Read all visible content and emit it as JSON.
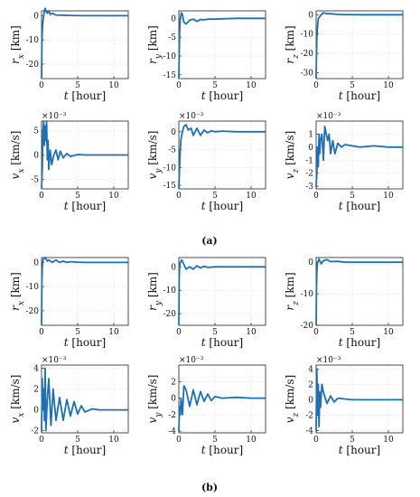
{
  "figure": {
    "caption_a": "(a)",
    "caption_b": "(b)"
  },
  "colors": {
    "line": "#1f6fb4",
    "grid": "#e3e3e3",
    "axis": "#222222"
  },
  "chart_data": [
    {
      "panel": "a-rx",
      "type": "line",
      "group": "a",
      "xlabel": "t [hour]",
      "ylabel": "r_x [km]",
      "xlim": [
        0,
        12
      ],
      "ylim": [
        -26,
        2
      ],
      "xticks": [
        0,
        5,
        10
      ],
      "yticks": [
        -20,
        -10,
        0
      ],
      "exponent": "",
      "x": [
        0,
        0.05,
        0.1,
        0.2,
        0.3,
        0.4,
        0.5,
        0.6,
        0.8,
        1,
        1.2,
        1.5,
        2,
        3,
        4,
        6,
        8,
        10,
        12
      ],
      "y": [
        -26,
        -12,
        -6,
        -2,
        0,
        2,
        3,
        2,
        1,
        2,
        0.5,
        1,
        0.3,
        0.2,
        0.1,
        0,
        0,
        0,
        0
      ]
    },
    {
      "panel": "a-ry",
      "type": "line",
      "group": "a",
      "xlabel": "t [hour]",
      "ylabel": "r_y [km]",
      "xlim": [
        0,
        12
      ],
      "ylim": [
        -16,
        2
      ],
      "xticks": [
        0,
        5,
        10
      ],
      "yticks": [
        -15,
        -10,
        -5,
        0
      ],
      "exponent": "",
      "x": [
        0,
        0.1,
        0.2,
        0.35,
        0.5,
        0.7,
        1,
        1.5,
        2,
        2.5,
        3,
        3.5,
        4,
        5,
        6,
        8,
        12
      ],
      "y": [
        -16,
        -4,
        0,
        1.5,
        1,
        -1,
        -1.5,
        -0.5,
        -0.2,
        -0.8,
        -0.3,
        -0.4,
        -0.2,
        -0.2,
        -0.1,
        0,
        0
      ]
    },
    {
      "panel": "a-rz",
      "type": "line",
      "group": "a",
      "xlabel": "t [hour]",
      "ylabel": "r_z [km]",
      "xlim": [
        0,
        12
      ],
      "ylim": [
        -33,
        2
      ],
      "xticks": [
        0,
        5,
        10
      ],
      "yticks": [
        -30,
        -20,
        -10,
        0
      ],
      "exponent": "",
      "x": [
        0,
        0.05,
        0.1,
        0.2,
        0.3,
        0.5,
        0.7,
        1,
        1.5,
        2,
        3,
        4,
        6,
        8,
        12
      ],
      "y": [
        -33,
        -20,
        -12,
        -6,
        -2,
        -1,
        0,
        1,
        0.5,
        0.5,
        0.2,
        0.1,
        0,
        0,
        0
      ]
    },
    {
      "panel": "a-vx",
      "type": "line",
      "group": "a",
      "xlabel": "t [hour]",
      "ylabel": "v_x [km/s]",
      "xlim": [
        0,
        12
      ],
      "ylim": [
        -7,
        7
      ],
      "xticks": [
        0,
        5,
        10
      ],
      "yticks": [
        -5,
        0,
        5
      ],
      "exponent": "×10⁻³",
      "x": [
        0,
        0.1,
        0.2,
        0.3,
        0.4,
        0.5,
        0.6,
        0.7,
        0.8,
        0.9,
        1.0,
        1.2,
        1.4,
        1.7,
        2,
        2.3,
        2.6,
        3,
        3.5,
        4,
        5,
        6,
        8,
        12
      ],
      "y": [
        -7,
        -3,
        5,
        7,
        2,
        6,
        3,
        7,
        -1,
        3,
        -3,
        1,
        -2,
        0,
        1,
        -1,
        0.8,
        -0.6,
        0.3,
        -0.3,
        0.1,
        0,
        0,
        0
      ]
    },
    {
      "panel": "a-vy",
      "type": "line",
      "group": "a",
      "xlabel": "t [hour]",
      "ylabel": "v_y [km/s]",
      "xlim": [
        0,
        12
      ],
      "ylim": [
        -16,
        3
      ],
      "xticks": [
        0,
        5,
        10
      ],
      "yticks": [
        -15,
        -10,
        -5,
        0
      ],
      "exponent": "×10⁻³",
      "x": [
        0,
        0.1,
        0.2,
        0.3,
        0.5,
        0.7,
        1,
        1.3,
        1.7,
        2,
        2.5,
        3,
        3.5,
        4,
        4.5,
        5,
        6,
        8,
        12
      ],
      "y": [
        -16,
        -10,
        -5,
        -2,
        0,
        1.5,
        2,
        0.5,
        1,
        -1,
        1,
        -1,
        0.5,
        -0.3,
        0.3,
        0,
        0.2,
        0,
        0
      ]
    },
    {
      "panel": "a-vz",
      "type": "line",
      "group": "a",
      "xlabel": "t [hour]",
      "ylabel": "v_z [km/s]",
      "xlim": [
        0,
        12
      ],
      "ylim": [
        -3.2,
        2
      ],
      "xticks": [
        0,
        5,
        10
      ],
      "yticks": [
        -3,
        -2,
        -1,
        0,
        1
      ],
      "exponent": "×10⁻³",
      "x": [
        0,
        0.1,
        0.2,
        0.3,
        0.4,
        0.5,
        0.6,
        0.8,
        1,
        1.2,
        1.4,
        1.6,
        1.8,
        2,
        2.3,
        2.6,
        3,
        3.5,
        4,
        5,
        6,
        8,
        10,
        12
      ],
      "y": [
        -3,
        -2,
        0,
        -1.5,
        1,
        -0.5,
        0.5,
        1,
        -1,
        1.6,
        1,
        0.5,
        1,
        -0.5,
        0.5,
        -0.5,
        0.3,
        0,
        0.2,
        0.1,
        0,
        0.1,
        0,
        0
      ]
    },
    {
      "panel": "b-rx",
      "type": "line",
      "group": "b",
      "xlabel": "t [hour]",
      "ylabel": "r_x [km]",
      "xlim": [
        0,
        12
      ],
      "ylim": [
        -26,
        2
      ],
      "xticks": [
        0,
        5,
        10
      ],
      "yticks": [
        -20,
        -10,
        0
      ],
      "exponent": "",
      "x": [
        0,
        0.05,
        0.1,
        0.2,
        0.3,
        0.5,
        0.8,
        1,
        1.5,
        2,
        2.5,
        3,
        3.5,
        4,
        5,
        6,
        8,
        12
      ],
      "y": [
        -26,
        -8,
        -2,
        1,
        1.5,
        2,
        0.5,
        1,
        0,
        1,
        0,
        0.5,
        0,
        0.3,
        0.1,
        0,
        0,
        0
      ]
    },
    {
      "panel": "b-ry",
      "type": "line",
      "group": "b",
      "xlabel": "t [hour]",
      "ylabel": "r_y [km]",
      "xlim": [
        0,
        12
      ],
      "ylim": [
        -25,
        4
      ],
      "xticks": [
        0,
        5,
        10
      ],
      "yticks": [
        -20,
        -10,
        0
      ],
      "exponent": "",
      "x": [
        0,
        0.05,
        0.1,
        0.2,
        0.4,
        0.7,
        1,
        1.5,
        2,
        2.5,
        3,
        3.5,
        4,
        5,
        6,
        8,
        12
      ],
      "y": [
        -25,
        -5,
        0,
        2,
        3,
        1,
        -1,
        0,
        -1,
        0.5,
        -0.5,
        0.3,
        -0.2,
        0,
        0,
        0,
        0
      ]
    },
    {
      "panel": "b-rz",
      "type": "line",
      "group": "b",
      "xlabel": "t [hour]",
      "ylabel": "r_z [km]",
      "xlim": [
        0,
        12
      ],
      "ylim": [
        -20,
        1.5
      ],
      "xticks": [
        0,
        5,
        10
      ],
      "yticks": [
        -20,
        -10,
        0
      ],
      "exponent": "",
      "x": [
        0,
        0.05,
        0.1,
        0.2,
        0.4,
        0.7,
        1,
        1.5,
        2,
        3,
        4,
        6,
        8,
        12
      ],
      "y": [
        -20,
        -8,
        -3,
        0,
        1,
        -0.5,
        0.5,
        0.8,
        0.2,
        0.3,
        0,
        0,
        0,
        0
      ]
    },
    {
      "panel": "b-vx",
      "type": "line",
      "group": "b",
      "xlabel": "t [hour]",
      "ylabel": "v_x [km/s]",
      "xlim": [
        0,
        12
      ],
      "ylim": [
        -2.2,
        4.3
      ],
      "xticks": [
        0,
        5,
        10
      ],
      "yticks": [
        -2,
        0,
        2,
        4
      ],
      "exponent": "×10⁻³",
      "x": [
        0,
        0.1,
        0.2,
        0.3,
        0.4,
        0.5,
        0.6,
        0.8,
        1,
        1.3,
        1.6,
        2,
        2.5,
        3,
        3.5,
        4,
        4.5,
        5,
        5.5,
        6,
        7,
        8,
        10,
        12
      ],
      "y": [
        -2,
        3,
        0,
        2,
        -1,
        4,
        -2,
        1,
        3,
        -1.5,
        2,
        -1,
        1.2,
        -1,
        1,
        -0.6,
        0.8,
        -0.4,
        0.4,
        -0.2,
        0.1,
        0,
        0,
        0
      ]
    },
    {
      "panel": "b-vy",
      "type": "line",
      "group": "b",
      "xlabel": "t [hour]",
      "ylabel": "v_y [km/s]",
      "xlim": [
        0,
        12
      ],
      "ylim": [
        -4.2,
        4
      ],
      "xticks": [
        0,
        5,
        10
      ],
      "yticks": [
        -4,
        -2,
        0,
        2
      ],
      "exponent": "×10⁻³",
      "x": [
        0,
        0.1,
        0.2,
        0.3,
        0.5,
        0.7,
        1,
        1.5,
        2,
        2.5,
        3,
        3.5,
        4,
        4.5,
        5,
        6,
        8,
        10,
        12
      ],
      "y": [
        -4,
        -1,
        -2,
        0,
        -2,
        1.5,
        1,
        -1,
        1,
        -0.8,
        0.8,
        -0.4,
        0.5,
        -0.3,
        0.2,
        0,
        0.1,
        0,
        0
      ]
    },
    {
      "panel": "b-vz",
      "type": "line",
      "group": "b",
      "xlabel": "t [hour]",
      "ylabel": "v_z [km/s]",
      "xlim": [
        0,
        12
      ],
      "ylim": [
        -4.3,
        4.5
      ],
      "xticks": [
        0,
        5,
        10
      ],
      "yticks": [
        -4,
        -2,
        0,
        2,
        4
      ],
      "exponent": "×10⁻³",
      "x": [
        0,
        0.1,
        0.2,
        0.3,
        0.4,
        0.5,
        0.6,
        0.8,
        1,
        1.5,
        2,
        2.5,
        3,
        4,
        5,
        6,
        8,
        12
      ],
      "y": [
        -4,
        4,
        -2,
        2,
        -3.5,
        1,
        -1,
        2,
        1,
        -0.5,
        0.5,
        -0.3,
        0.2,
        0.1,
        0,
        0,
        0,
        0
      ]
    }
  ]
}
